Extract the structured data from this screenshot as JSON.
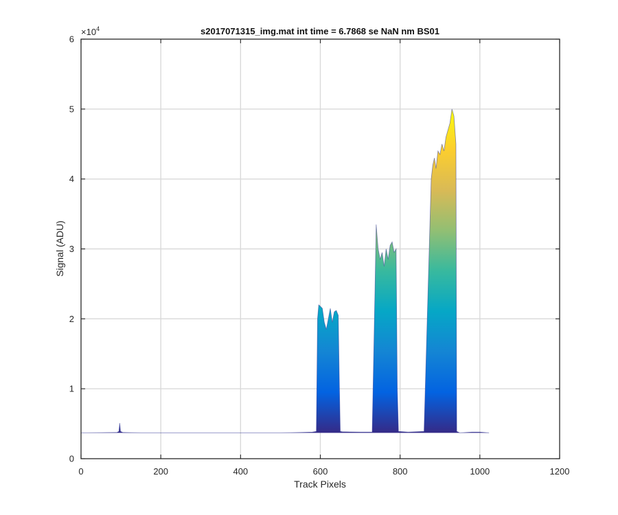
{
  "chart_data": {
    "type": "area",
    "title": "s2017071315_img.mat int time = 6.7868 se  NaN nm BS01",
    "xlabel": "Track Pixels",
    "ylabel": "Signal (ADU)",
    "xlim": [
      0,
      1200
    ],
    "ylim": [
      0,
      60000
    ],
    "y_exponent_label": "×10",
    "y_exponent_power": "4",
    "x_ticks": [
      0,
      200,
      400,
      600,
      800,
      1000,
      1200
    ],
    "x_tick_labels": [
      "0",
      "200",
      "400",
      "600",
      "800",
      "1000",
      "1200"
    ],
    "y_ticks": [
      0,
      10000,
      20000,
      30000,
      40000,
      50000,
      60000
    ],
    "y_tick_labels": [
      "0",
      "1",
      "2",
      "3",
      "4",
      "5",
      "6"
    ],
    "grid": true,
    "colormap": [
      "#352a87",
      "#0363e1",
      "#1485d4",
      "#06a7c6",
      "#38b99e",
      "#92bf73",
      "#d9ba56",
      "#fcce2e",
      "#f9fb0e"
    ],
    "series": [
      {
        "x": [
          0,
          90,
          95,
          97,
          99,
          105,
          150,
          200,
          300,
          400,
          500,
          550,
          580,
          590,
          593,
          596,
          600,
          605,
          610,
          615,
          620,
          625,
          630,
          635,
          640,
          645,
          648,
          650,
          655,
          700,
          730,
          737,
          740,
          745,
          750,
          755,
          760,
          765,
          770,
          775,
          780,
          785,
          790,
          793,
          796,
          820,
          860,
          878,
          882,
          886,
          890,
          895,
          900,
          905,
          910,
          915,
          920,
          925,
          930,
          935,
          940,
          942,
          950,
          980,
          1000,
          1023
        ],
        "y": [
          3700,
          3750,
          3900,
          5100,
          3900,
          3750,
          3700,
          3700,
          3700,
          3700,
          3700,
          3750,
          3800,
          3900,
          20000,
          22000,
          21800,
          21500,
          19500,
          18500,
          20000,
          21500,
          19500,
          21000,
          21200,
          20500,
          10000,
          3900,
          3850,
          3800,
          3800,
          24000,
          33500,
          30000,
          28500,
          29500,
          27500,
          30000,
          28500,
          30500,
          31000,
          29500,
          30000,
          10000,
          3900,
          3800,
          3900,
          40000,
          42000,
          43000,
          41500,
          44000,
          43500,
          45000,
          44000,
          46000,
          47000,
          48000,
          50000,
          49000,
          45000,
          3900,
          3700,
          3800,
          3800,
          3700
        ]
      }
    ]
  }
}
